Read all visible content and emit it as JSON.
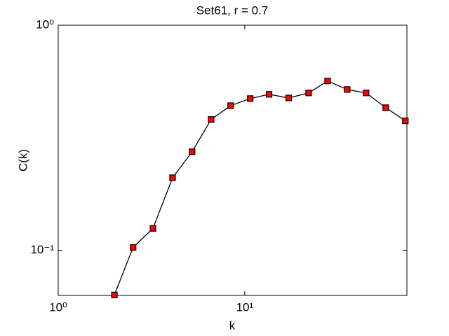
{
  "chart_data": {
    "type": "line",
    "title": "Set61, r = 0.7",
    "x_label": "k",
    "y_label": "C(k)",
    "x": [
      2,
      2.52,
      3.22,
      4.1,
      5.22,
      6.6,
      8.4,
      10.7,
      13.5,
      17.2,
      22.0,
      27.8,
      35.4,
      44.7,
      57.0,
      72.6
    ],
    "series": [
      {
        "color": "#ff0000",
        "line_color": "#000000",
        "values": [
          0.0633,
          0.103,
          0.125,
          0.21,
          0.274,
          0.381,
          0.439,
          0.472,
          0.493,
          0.475,
          0.5,
          0.565,
          0.518,
          0.5,
          0.43,
          0.376
        ]
      }
    ],
    "xlim": [
      1,
      74
    ],
    "ylim": [
      0.063,
      1
    ],
    "xticks": [
      {
        "value": 1,
        "label": "10⁰"
      },
      {
        "value": 10,
        "label": "10¹"
      }
    ],
    "yticks": [
      {
        "value": 0.1,
        "label": "10⁻¹"
      },
      {
        "value": 1,
        "label": "10⁰"
      }
    ],
    "xscale": "log",
    "yscale": "log",
    "grid": false
  }
}
